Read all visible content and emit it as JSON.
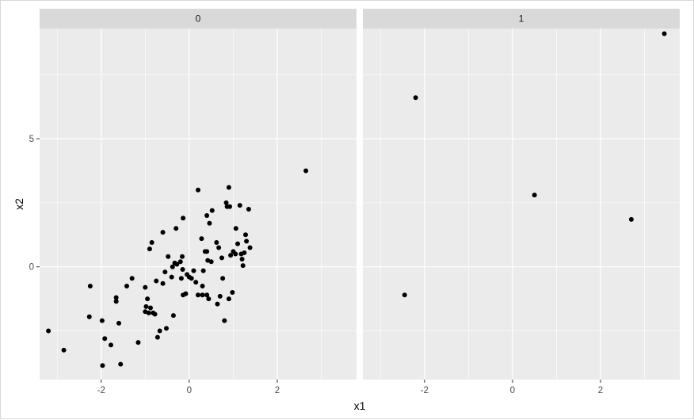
{
  "chart_data": {
    "type": "scatter",
    "facet_variable_values": [
      "0",
      "1"
    ],
    "xlabel": "x1",
    "ylabel": "x2",
    "xlim": [
      -3.4,
      3.8
    ],
    "ylim": [
      -4.4,
      9.3
    ],
    "x_ticks": [
      -2,
      0,
      2
    ],
    "x_tick_labels": [
      "-2",
      "0",
      "2"
    ],
    "y_ticks": [
      0,
      5
    ],
    "y_tick_labels": [
      "0",
      "5"
    ],
    "grid": true,
    "colors": {
      "panel_background": "#ebebeb",
      "strip_background": "#d9d9d9",
      "grid": "#ffffff",
      "point": "#000000",
      "tick": "#333333"
    },
    "panels": [
      {
        "strip_label": "0",
        "points": [
          [
            -3.2,
            -2.5
          ],
          [
            -2.85,
            -3.25
          ],
          [
            -2.25,
            -0.75
          ],
          [
            -2.27,
            -1.95
          ],
          [
            -1.98,
            -2.1
          ],
          [
            -1.97,
            -3.85
          ],
          [
            -1.92,
            -2.8
          ],
          [
            -1.78,
            -3.05
          ],
          [
            -1.66,
            -1.2
          ],
          [
            -1.66,
            -1.35
          ],
          [
            -1.6,
            -2.2
          ],
          [
            -1.56,
            -3.8
          ],
          [
            -1.42,
            -0.75
          ],
          [
            -1.3,
            -0.45
          ],
          [
            -1.16,
            -2.95
          ],
          [
            -1.0,
            -0.8
          ],
          [
            -1.0,
            -1.75
          ],
          [
            -0.98,
            -1.55
          ],
          [
            -0.95,
            -1.25
          ],
          [
            -0.92,
            -1.8
          ],
          [
            -0.9,
            0.7
          ],
          [
            -0.88,
            -1.6
          ],
          [
            -0.85,
            0.95
          ],
          [
            -0.82,
            -1.8
          ],
          [
            -0.78,
            -1.85
          ],
          [
            -0.75,
            -0.55
          ],
          [
            -0.72,
            -2.75
          ],
          [
            -0.67,
            -2.5
          ],
          [
            -0.6,
            1.35
          ],
          [
            -0.6,
            -0.65
          ],
          [
            -0.55,
            -0.2
          ],
          [
            -0.52,
            -2.4
          ],
          [
            -0.48,
            0.4
          ],
          [
            -0.4,
            -0.4
          ],
          [
            -0.38,
            0.0
          ],
          [
            -0.36,
            -1.9
          ],
          [
            -0.33,
            0.15
          ],
          [
            -0.3,
            1.5
          ],
          [
            -0.28,
            0.1
          ],
          [
            -0.2,
            0.2
          ],
          [
            -0.18,
            -0.45
          ],
          [
            -0.16,
            0.4
          ],
          [
            -0.15,
            -0.1
          ],
          [
            -0.14,
            1.9
          ],
          [
            -0.14,
            -1.1
          ],
          [
            -0.08,
            -1.05
          ],
          [
            -0.05,
            -0.3
          ],
          [
            0.0,
            -0.4
          ],
          [
            0.05,
            -0.45
          ],
          [
            0.1,
            -0.15
          ],
          [
            0.15,
            -0.6
          ],
          [
            0.2,
            3.0
          ],
          [
            0.2,
            -1.1
          ],
          [
            0.28,
            1.1
          ],
          [
            0.3,
            -0.75
          ],
          [
            0.3,
            -1.1
          ],
          [
            0.32,
            -0.15
          ],
          [
            0.36,
            0.6
          ],
          [
            0.4,
            -1.1
          ],
          [
            0.4,
            0.6
          ],
          [
            0.4,
            2.0
          ],
          [
            0.42,
            0.25
          ],
          [
            0.44,
            -1.25
          ],
          [
            0.46,
            1.7
          ],
          [
            0.5,
            0.2
          ],
          [
            0.52,
            2.2
          ],
          [
            0.62,
            0.95
          ],
          [
            0.64,
            -1.45
          ],
          [
            0.67,
            0.75
          ],
          [
            0.7,
            -1.15
          ],
          [
            0.74,
            0.35
          ],
          [
            0.76,
            -0.45
          ],
          [
            0.8,
            -2.1
          ],
          [
            0.84,
            2.5
          ],
          [
            0.86,
            2.35
          ],
          [
            0.9,
            3.1
          ],
          [
            0.9,
            -1.25
          ],
          [
            0.92,
            2.35
          ],
          [
            0.94,
            0.45
          ],
          [
            0.98,
            -1.0
          ],
          [
            1.0,
            0.6
          ],
          [
            1.05,
            0.5
          ],
          [
            1.06,
            1.5
          ],
          [
            1.1,
            0.9
          ],
          [
            1.15,
            2.4
          ],
          [
            1.18,
            0.5
          ],
          [
            1.2,
            0.3
          ],
          [
            1.22,
            0.05
          ],
          [
            1.25,
            0.55
          ],
          [
            1.28,
            1.25
          ],
          [
            1.3,
            1.0
          ],
          [
            1.35,
            2.25
          ],
          [
            1.38,
            0.75
          ],
          [
            2.65,
            3.75
          ]
        ]
      },
      {
        "strip_label": "1",
        "points": [
          [
            -2.45,
            -1.1
          ],
          [
            -2.2,
            6.6
          ],
          [
            0.5,
            2.8
          ],
          [
            2.7,
            1.85
          ],
          [
            3.45,
            9.1
          ]
        ]
      }
    ]
  }
}
